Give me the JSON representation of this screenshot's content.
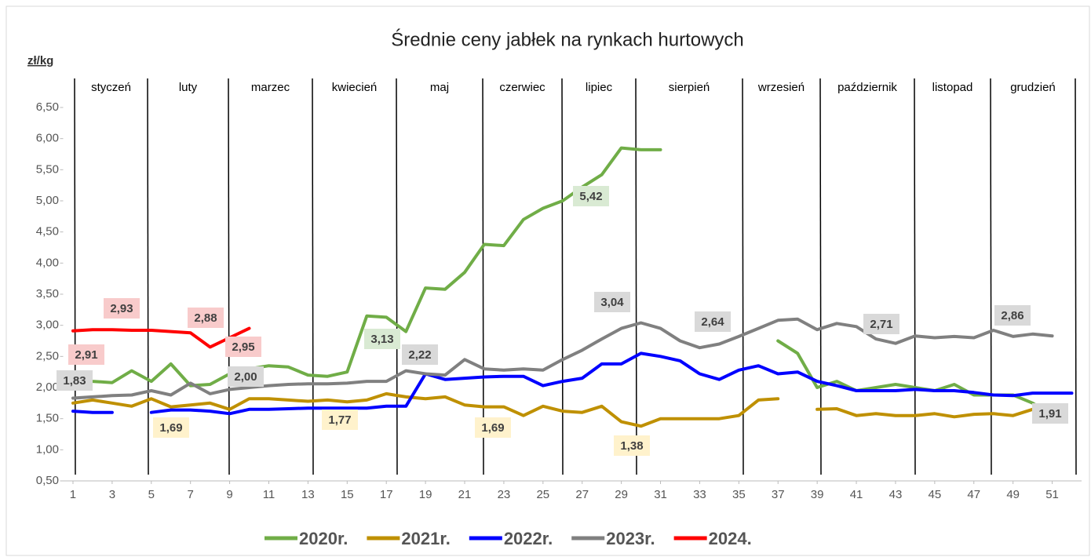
{
  "chart_data": {
    "type": "line",
    "title": "Średnie ceny jabłek na rynkach hurtowych",
    "y_label": "zł/kg",
    "months": [
      "styczeń",
      "luty",
      "marzec",
      "kwiecień",
      "maj",
      "czerwiec",
      "lipiec",
      "sierpień",
      "wrzesień",
      "październik",
      "listopad",
      "grudzień"
    ],
    "x": [
      1,
      2,
      3,
      4,
      5,
      6,
      7,
      8,
      9,
      10,
      11,
      12,
      13,
      14,
      15,
      16,
      17,
      18,
      19,
      20,
      21,
      22,
      23,
      24,
      25,
      26,
      27,
      28,
      29,
      30,
      31,
      32,
      33,
      34,
      35,
      36,
      37,
      38,
      39,
      40,
      41,
      42,
      43,
      44,
      45,
      46,
      47,
      48,
      49,
      50,
      51,
      52
    ],
    "xlim": [
      0.5,
      52.5
    ],
    "xticks": [
      1,
      3,
      5,
      7,
      9,
      11,
      13,
      15,
      17,
      19,
      21,
      23,
      25,
      27,
      29,
      31,
      33,
      35,
      37,
      39,
      41,
      43,
      45,
      47,
      49,
      51
    ],
    "ylim": [
      0.5,
      6.5
    ],
    "yticks": [
      {
        "value": 0.5,
        "label": "0,50"
      },
      {
        "value": 1,
        "label": "1,00"
      },
      {
        "value": 1.5,
        "label": "1,50"
      },
      {
        "value": 2,
        "label": "2,00"
      },
      {
        "value": 2.5,
        "label": "2,50"
      },
      {
        "value": 3,
        "label": "3,00"
      },
      {
        "value": 3.5,
        "label": "3,50"
      },
      {
        "value": 4,
        "label": "4,00"
      },
      {
        "value": 4.5,
        "label": "4,50"
      },
      {
        "value": 5,
        "label": "5,00"
      },
      {
        "value": 5.5,
        "label": "5,50"
      },
      {
        "value": 6,
        "label": "6,00"
      },
      {
        "value": 6.5,
        "label": "6,50"
      }
    ],
    "series": [
      {
        "name": "2020r.",
        "color": "#70ad47",
        "label_color": "#d9ead3",
        "values": [
          2.15,
          2.1,
          2.08,
          2.27,
          2.1,
          2.38,
          2.03,
          2.05,
          2.22,
          2.3,
          2.35,
          2.33,
          2.2,
          2.18,
          2.25,
          3.15,
          3.13,
          2.9,
          3.6,
          3.58,
          3.85,
          4.3,
          4.28,
          4.7,
          4.88,
          5.0,
          5.22,
          5.42,
          5.85,
          5.82,
          5.82,
          null,
          null,
          null,
          null,
          null,
          2.75,
          2.55,
          2.0,
          2.1,
          1.95,
          2.0,
          2.05,
          2.0,
          1.95,
          2.05,
          1.88,
          1.88,
          1.88,
          1.75,
          1.55,
          null
        ]
      },
      {
        "name": "2021r.",
        "color": "#bf9000",
        "label_color": "#fff2cc",
        "values": [
          1.75,
          1.8,
          1.75,
          1.7,
          1.82,
          1.69,
          1.72,
          1.75,
          1.65,
          1.82,
          1.82,
          1.8,
          1.78,
          1.8,
          1.77,
          1.8,
          1.9,
          1.85,
          1.82,
          1.85,
          1.72,
          1.69,
          1.69,
          1.55,
          1.7,
          1.62,
          1.6,
          1.7,
          1.45,
          1.38,
          1.5,
          1.5,
          1.5,
          1.5,
          1.55,
          1.8,
          1.82,
          null,
          1.65,
          1.66,
          1.55,
          1.58,
          1.55,
          1.55,
          1.58,
          1.53,
          1.57,
          1.58,
          1.55,
          1.65,
          1.65,
          null
        ]
      },
      {
        "name": "2022r.",
        "color": "#0000ff",
        "label_color": "#d9d9d9",
        "values": [
          1.62,
          1.6,
          1.6,
          null,
          1.6,
          1.64,
          1.64,
          1.62,
          1.58,
          1.65,
          1.65,
          1.66,
          1.67,
          1.67,
          1.67,
          1.67,
          1.7,
          1.7,
          2.22,
          2.13,
          2.15,
          2.17,
          2.18,
          2.18,
          2.03,
          2.1,
          2.15,
          2.38,
          2.38,
          2.55,
          2.5,
          2.43,
          2.22,
          2.13,
          2.28,
          2.35,
          2.22,
          2.25,
          2.1,
          2.03,
          1.95,
          1.95,
          1.95,
          1.97,
          1.95,
          1.95,
          1.92,
          1.88,
          1.87,
          1.91,
          1.91,
          1.91
        ]
      },
      {
        "name": "2023r.",
        "color": "#808080",
        "label_color": "#d9d9d9",
        "values": [
          1.83,
          1.85,
          1.87,
          1.88,
          1.95,
          1.88,
          2.07,
          1.9,
          1.97,
          2.0,
          2.03,
          2.05,
          2.06,
          2.06,
          2.07,
          2.1,
          2.1,
          2.27,
          2.22,
          2.2,
          2.45,
          2.3,
          2.28,
          2.3,
          2.28,
          2.45,
          2.6,
          2.78,
          2.95,
          3.04,
          2.95,
          2.75,
          2.64,
          2.7,
          2.82,
          2.95,
          3.08,
          3.1,
          2.93,
          3.03,
          2.98,
          2.78,
          2.71,
          2.83,
          2.8,
          2.82,
          2.8,
          2.92,
          2.82,
          2.86,
          2.83,
          null
        ]
      },
      {
        "name": "2024.",
        "color": "#ff0000",
        "label_color": "#f8cbcb",
        "values": [
          2.91,
          2.93,
          2.93,
          2.92,
          2.92,
          2.9,
          2.88,
          2.65,
          2.8,
          2.95,
          null,
          null,
          null,
          null,
          null,
          null,
          null,
          null,
          null,
          null,
          null,
          null,
          null,
          null,
          null,
          null,
          null,
          null,
          null,
          null,
          null,
          null,
          null,
          null,
          null,
          null,
          null,
          null,
          null,
          null,
          null,
          null,
          null,
          null,
          null,
          null,
          null,
          null,
          null,
          null,
          null,
          null
        ]
      }
    ],
    "value_labels": [
      {
        "series": 4,
        "index": 1,
        "label": "2,93"
      },
      {
        "series": 4,
        "index": 0,
        "label": "2,91"
      },
      {
        "series": 4,
        "index": 6,
        "label": "2,88"
      },
      {
        "series": 4,
        "index": 9,
        "label": "2,95"
      },
      {
        "series": 3,
        "index": 0,
        "label": "1,83"
      },
      {
        "series": 3,
        "index": 9,
        "label": "2,00"
      },
      {
        "series": 1,
        "index": 5,
        "label": "1,69"
      },
      {
        "series": 1,
        "index": 14,
        "label": "1,77"
      },
      {
        "series": 0,
        "index": 16,
        "label": "3,13"
      },
      {
        "series": 2,
        "index": 18,
        "label": "2,22"
      },
      {
        "series": 1,
        "index": 22,
        "label": "1,69"
      },
      {
        "series": 0,
        "index": 27,
        "label": "5,42"
      },
      {
        "series": 3,
        "index": 29,
        "label": "3,04"
      },
      {
        "series": 1,
        "index": 29,
        "label": "1,38"
      },
      {
        "series": 3,
        "index": 32,
        "label": "2,64"
      },
      {
        "series": 3,
        "index": 42,
        "label": "2,71"
      },
      {
        "series": 3,
        "index": 49,
        "label": "2,86"
      },
      {
        "series": 2,
        "index": 50,
        "label": "1,91"
      }
    ]
  }
}
